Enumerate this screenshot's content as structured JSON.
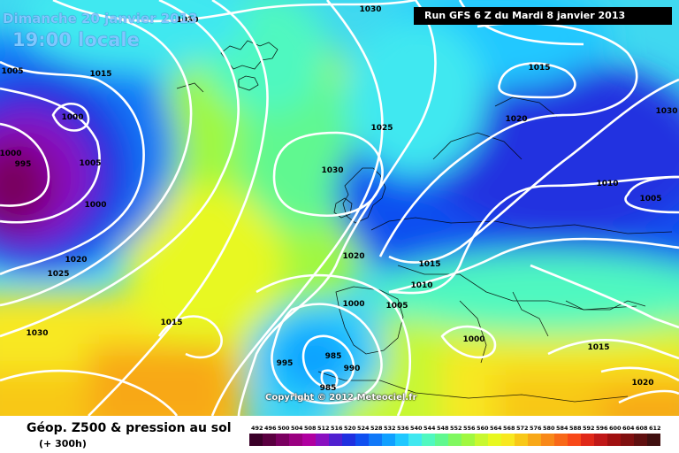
{
  "header": {
    "date": "Dimanche 20 janvier 2013",
    "time": "19:00 locale",
    "run": "Run GFS 6 Z du Mardi 8 janvier 2013"
  },
  "copyright": "Copyright © 2012 Meteociel.fr",
  "footer": {
    "title": "Géop. Z500 & pression au sol",
    "subtitle": "(+ 300h)"
  },
  "legend": {
    "values": [
      "492",
      "496",
      "500",
      "504",
      "508",
      "512",
      "516",
      "520",
      "524",
      "528",
      "532",
      "536",
      "540",
      "544",
      "548",
      "552",
      "556",
      "560",
      "564",
      "568",
      "572",
      "576",
      "580",
      "584",
      "588",
      "592",
      "596",
      "600",
      "604",
      "608",
      "612"
    ],
    "colors": [
      "#3a0028",
      "#5a0040",
      "#7a0060",
      "#9a0080",
      "#b000a0",
      "#8a10c0",
      "#5020d0",
      "#2030e0",
      "#1050f0",
      "#1078f8",
      "#10a0ff",
      "#20c8ff",
      "#40e8f0",
      "#50f8c0",
      "#60f890",
      "#80f860",
      "#a0f840",
      "#c8f830",
      "#e8f820",
      "#f8e820",
      "#f8c818",
      "#f8a818",
      "#f88818",
      "#f86818",
      "#f84818",
      "#e02818",
      "#c01818",
      "#a01010",
      "#801010",
      "#601010",
      "#401010"
    ]
  },
  "isobars": [
    {
      "label": "1030"
    },
    {
      "label": "1005"
    },
    {
      "label": "1015"
    },
    {
      "label": "1000"
    },
    {
      "label": "995"
    },
    {
      "label": "1000"
    },
    {
      "label": "1005"
    },
    {
      "label": "1000"
    },
    {
      "label": "1020"
    },
    {
      "label": "1025"
    },
    {
      "label": "1030"
    },
    {
      "label": "1015"
    },
    {
      "label": "1025"
    },
    {
      "label": "1030"
    },
    {
      "label": "1020"
    },
    {
      "label": "1015"
    },
    {
      "label": "1010"
    },
    {
      "label": "1000"
    },
    {
      "label": "1005"
    },
    {
      "label": "995"
    },
    {
      "label": "985"
    },
    {
      "label": "990"
    },
    {
      "label": "985"
    },
    {
      "label": "1000"
    },
    {
      "label": "1015"
    },
    {
      "label": "1020"
    },
    {
      "label": "1015"
    },
    {
      "label": "1020"
    },
    {
      "label": "1030"
    },
    {
      "label": "1010"
    },
    {
      "label": "1005"
    },
    {
      "label": "1030"
    }
  ]
}
